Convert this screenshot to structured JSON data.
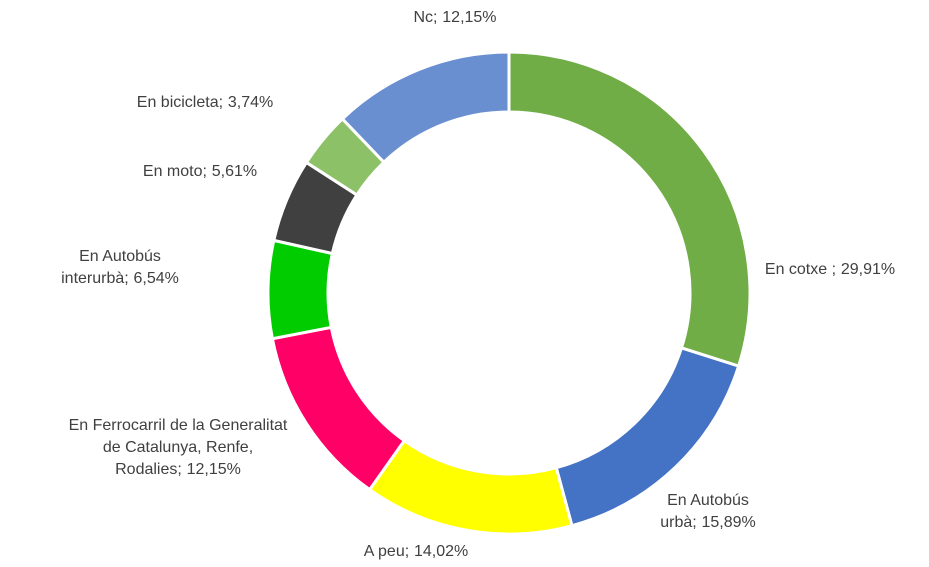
{
  "chart_data": {
    "type": "donut",
    "categories": [
      "En cotxe ;",
      "En Autobús urbà;",
      "A peu;",
      "En Ferrocarril de la Generalitat de Catalunya, Renfe, Rodalies;",
      "En Autobús interurbà;",
      "En moto;",
      "En bicicleta;",
      "Nc;"
    ],
    "values": [
      29.91,
      15.89,
      14.02,
      12.15,
      6.54,
      5.61,
      3.74,
      12.15
    ],
    "value_labels": [
      "29,91%",
      "15,89%",
      "14,02%",
      "12,15%",
      "6,54%",
      "5,61%",
      "3,74%",
      "12,15%"
    ],
    "colors": [
      "#70ad47",
      "#4472c4",
      "#ffff00",
      "#ff0066",
      "#00cc00",
      "#404040",
      "#8cc168",
      "#6a8fd0"
    ]
  }
}
